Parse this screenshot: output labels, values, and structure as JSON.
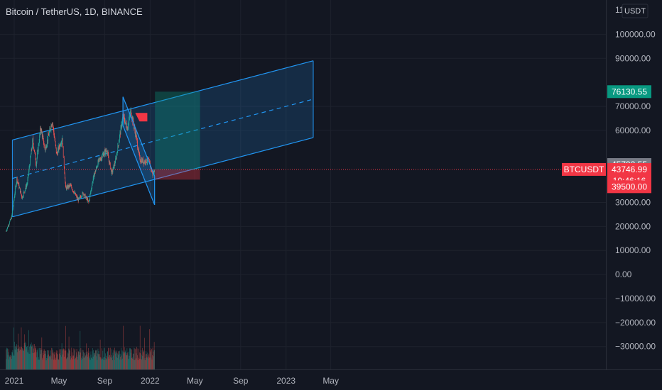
{
  "header": {
    "title": "Bitcoin / TetherUS, 1D, BINANCE"
  },
  "price_axis": {
    "currency_label": "USDT",
    "top_partial_label": "11",
    "ticks": [
      {
        "value": 100000,
        "label": "100000.00"
      },
      {
        "value": 90000,
        "label": "90000.00"
      },
      {
        "value": 70000,
        "label": "70000.00"
      },
      {
        "value": 60000,
        "label": "60000.00"
      },
      {
        "value": 30000,
        "label": "30000.00"
      },
      {
        "value": 20000,
        "label": "20000.00"
      },
      {
        "value": 10000,
        "label": "10000.00"
      },
      {
        "value": 0,
        "label": "0.00"
      },
      {
        "value": -10000,
        "label": "−10000.00"
      },
      {
        "value": -20000,
        "label": "−20000.00"
      },
      {
        "value": -30000,
        "label": "−30000.00"
      }
    ]
  },
  "badges": {
    "take_profit": {
      "value": 76130.55,
      "label": "76130.55",
      "color": "#089981"
    },
    "channel_level": {
      "value": 45792.55,
      "label": "45792.55",
      "color": "#787b86"
    },
    "symbol": {
      "label": "BTCUSDT",
      "color": "#f23645"
    },
    "last_price": {
      "value": 43746.99,
      "label": "43746.99",
      "countdown": "10:46:16",
      "color": "#f23645"
    },
    "stop_loss": {
      "value": 39500,
      "label": "39500.00",
      "color": "#f23645"
    }
  },
  "time_axis": {
    "labels": [
      {
        "date": "2021-01-01",
        "label": "2021"
      },
      {
        "date": "2021-05-01",
        "label": "May"
      },
      {
        "date": "2021-09-01",
        "label": "Sep"
      },
      {
        "date": "2022-01-01",
        "label": "2022"
      },
      {
        "date": "2022-05-01",
        "label": "May"
      },
      {
        "date": "2022-09-01",
        "label": "Sep"
      },
      {
        "date": "2023-01-01",
        "label": "2023"
      },
      {
        "date": "2023-05-01",
        "label": "May"
      }
    ]
  },
  "chart_data": {
    "type": "candlestick",
    "symbol": "BTCUSDT",
    "grid": true,
    "colors": {
      "up": "#26a69a",
      "down": "#ef5350",
      "channel": "#2196f3",
      "background": "#131722"
    },
    "price_path": [
      {
        "date": "2020-12-10",
        "price": 18000
      },
      {
        "date": "2020-12-25",
        "price": 24000
      },
      {
        "date": "2021-01-08",
        "price": 40000
      },
      {
        "date": "2021-01-22",
        "price": 32000
      },
      {
        "date": "2021-02-05",
        "price": 38000
      },
      {
        "date": "2021-02-20",
        "price": 56000
      },
      {
        "date": "2021-03-01",
        "price": 46000
      },
      {
        "date": "2021-03-13",
        "price": 61000
      },
      {
        "date": "2021-03-25",
        "price": 52000
      },
      {
        "date": "2021-04-13",
        "price": 64000
      },
      {
        "date": "2021-04-25",
        "price": 50000
      },
      {
        "date": "2021-05-10",
        "price": 57000
      },
      {
        "date": "2021-05-19",
        "price": 36000
      },
      {
        "date": "2021-06-01",
        "price": 37000
      },
      {
        "date": "2021-06-22",
        "price": 31000
      },
      {
        "date": "2021-07-05",
        "price": 34000
      },
      {
        "date": "2021-07-20",
        "price": 30000
      },
      {
        "date": "2021-08-01",
        "price": 40000
      },
      {
        "date": "2021-08-15",
        "price": 47000
      },
      {
        "date": "2021-09-06",
        "price": 52000
      },
      {
        "date": "2021-09-20",
        "price": 42000
      },
      {
        "date": "2021-10-01",
        "price": 48000
      },
      {
        "date": "2021-10-20",
        "price": 66000
      },
      {
        "date": "2021-11-01",
        "price": 61000
      },
      {
        "date": "2021-11-10",
        "price": 68000
      },
      {
        "date": "2021-11-25",
        "price": 57000
      },
      {
        "date": "2021-12-04",
        "price": 48000
      },
      {
        "date": "2021-12-15",
        "price": 47000
      },
      {
        "date": "2021-12-28",
        "price": 47500
      },
      {
        "date": "2022-01-08",
        "price": 41500
      },
      {
        "date": "2022-01-13",
        "price": 43747
      }
    ],
    "volume_bars": 150,
    "drawings": {
      "ascending_channel": {
        "start": {
          "date": "2020-12-27",
          "upper": 56000,
          "mid": 40000,
          "lower": 24000
        },
        "end": {
          "date": "2023-03-15",
          "upper": 89000,
          "mid": 73000,
          "lower": 57000
        }
      },
      "descending_channel": {
        "p1": {
          "date": "2021-10-20",
          "price": 74000
        },
        "p2": {
          "date": "2022-01-13",
          "price": 41000
        },
        "width": 12000
      },
      "long_position": {
        "start_date": "2022-01-14",
        "end_date": "2022-05-15",
        "entry": 43747,
        "take_profit": 76130.55,
        "stop_loss": 39500
      },
      "flag": {
        "date": "2021-11-22",
        "price": 65500
      }
    }
  }
}
